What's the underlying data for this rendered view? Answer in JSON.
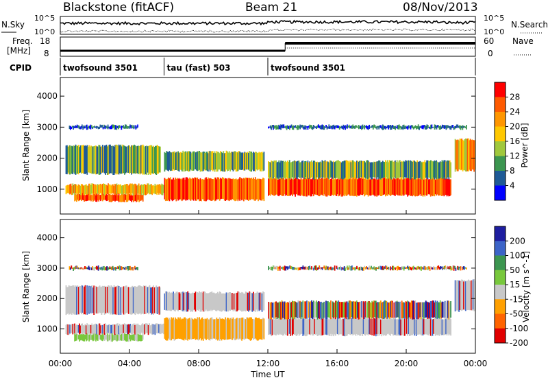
{
  "header": {
    "station": "Blackstone (fitACF)",
    "beam": "Beam 21",
    "date": "08/Nov/2013"
  },
  "chart_data": [
    {
      "type": "line",
      "name": "noise-panel",
      "left_label": "N.Sky",
      "right_label": "N.Search",
      "left_ticks": [
        "10^5",
        "10^0"
      ],
      "right_ticks": [
        "10^5",
        "10^0"
      ]
    },
    {
      "type": "line",
      "name": "freq-nave-panel",
      "left_label_1": "Freq.",
      "left_label_2": "[MHz]",
      "right_label": "Nave",
      "left_ticks": [
        "18",
        "8"
      ],
      "right_ticks": [
        "60",
        "0"
      ]
    },
    {
      "type": "table",
      "name": "cpid-panel",
      "label": "CPID",
      "segments": [
        {
          "start_hour": 0,
          "end_hour": 6,
          "text": "twofsound 3501"
        },
        {
          "start_hour": 6,
          "end_hour": 12,
          "text": "tau (fast) 503"
        },
        {
          "start_hour": 12,
          "end_hour": 24,
          "text": "twofsound 3501"
        }
      ]
    },
    {
      "type": "heatmap",
      "name": "power-panel",
      "ylabel": "Slant Range [km]",
      "yticks": [
        1000,
        2000,
        3000,
        4000
      ],
      "ylim": [
        200,
        4600
      ],
      "colorbar": {
        "label": "Power [dB]",
        "ticks": [
          "28",
          "24",
          "20",
          "16",
          "12",
          "8",
          "4"
        ],
        "colors": [
          "#ff0000",
          "#ff5a00",
          "#ff9600",
          "#ffc800",
          "#a0c83c",
          "#3c9650",
          "#1e5a96",
          "#0000ff"
        ]
      },
      "echo_bands": [
        {
          "t0": 0.8,
          "t1": 4.8,
          "r0": 620,
          "r1": 840,
          "level": "high"
        },
        {
          "t0": 0.3,
          "t1": 6.0,
          "r0": 840,
          "r1": 1150,
          "level": "mid-high"
        },
        {
          "t0": 6.0,
          "t1": 11.8,
          "r0": 650,
          "r1": 1350,
          "level": "high"
        },
        {
          "t0": 12.0,
          "t1": 22.6,
          "r0": 800,
          "r1": 1350,
          "level": "high"
        },
        {
          "t0": 12.0,
          "t1": 22.6,
          "r0": 1350,
          "r1": 1900,
          "level": "mid"
        },
        {
          "t0": 0.3,
          "t1": 5.8,
          "r0": 1500,
          "r1": 2400,
          "level": "mid"
        },
        {
          "t0": 6.0,
          "t1": 11.8,
          "r0": 1600,
          "r1": 2200,
          "level": "mid"
        },
        {
          "t0": 0.5,
          "t1": 4.5,
          "r0": 2950,
          "r1": 3050,
          "level": "low"
        },
        {
          "t0": 12.0,
          "t1": 23.5,
          "r0": 2950,
          "r1": 3050,
          "level": "low"
        },
        {
          "t0": 22.8,
          "t1": 24.0,
          "r0": 1600,
          "r1": 2600,
          "level": "mid-high"
        }
      ]
    },
    {
      "type": "heatmap",
      "name": "velocity-panel",
      "ylabel": "Slant Range [km]",
      "yticks": [
        1000,
        2000,
        3000,
        4000
      ],
      "ylim": [
        200,
        4600
      ],
      "xlabel": "Time UT",
      "xticks": [
        "00:00",
        "04:00",
        "08:00",
        "12:00",
        "16:00",
        "20:00",
        "00:00"
      ],
      "colorbar": {
        "label": "Velocity [m s^-1]",
        "ticks": [
          "200",
          "100",
          "50",
          "15",
          "-15",
          "-50",
          "-100",
          "-200"
        ],
        "colors": [
          "#1e1ea0",
          "#3c64c8",
          "#3c9650",
          "#78c83c",
          "#c8c8c8",
          "#ffa000",
          "#ff6400",
          "#e10000"
        ]
      },
      "echo_bands": [
        {
          "t0": 0.8,
          "t1": 4.8,
          "r0": 620,
          "r1": 840,
          "level": "green"
        },
        {
          "t0": 0.3,
          "t1": 6.0,
          "r0": 840,
          "r1": 1150,
          "level": "gray"
        },
        {
          "t0": 6.0,
          "t1": 11.8,
          "r0": 650,
          "r1": 1350,
          "level": "orange"
        },
        {
          "t0": 12.0,
          "t1": 22.6,
          "r0": 800,
          "r1": 1350,
          "level": "gray"
        },
        {
          "t0": 12.0,
          "t1": 22.6,
          "r0": 1350,
          "r1": 1900,
          "level": "mixed"
        },
        {
          "t0": 0.3,
          "t1": 5.8,
          "r0": 1500,
          "r1": 2400,
          "level": "gray"
        },
        {
          "t0": 6.0,
          "t1": 11.8,
          "r0": 1600,
          "r1": 2200,
          "level": "gray"
        },
        {
          "t0": 0.5,
          "t1": 4.5,
          "r0": 2950,
          "r1": 3050,
          "level": "mixed"
        },
        {
          "t0": 12.0,
          "t1": 23.5,
          "r0": 2950,
          "r1": 3050,
          "level": "mixed"
        },
        {
          "t0": 22.8,
          "t1": 24.0,
          "r0": 1600,
          "r1": 2600,
          "level": "gray"
        }
      ]
    }
  ]
}
